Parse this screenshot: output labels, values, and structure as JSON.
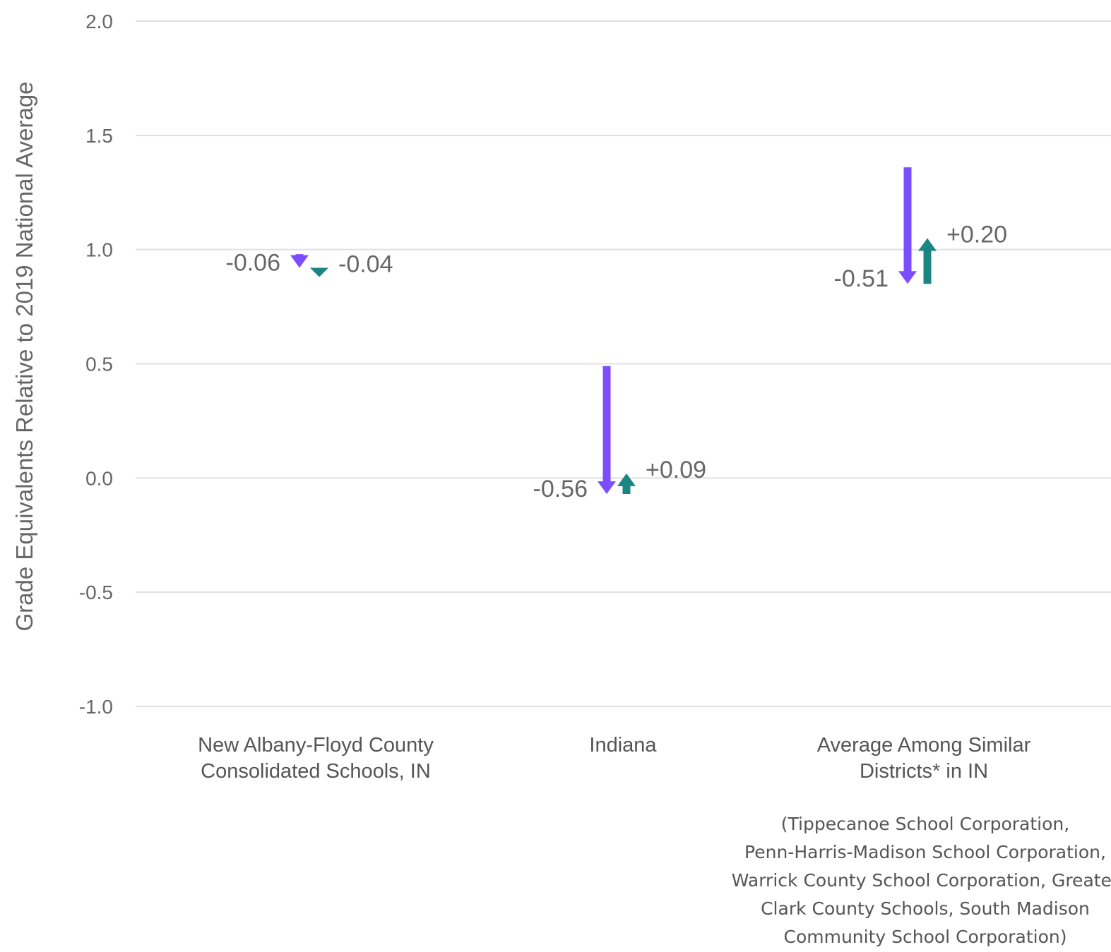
{
  "chart_data": {
    "type": "arrow",
    "ylabel": "Grade Equivalents Relative to 2019 National Average",
    "ylim": [
      -1.0,
      2.0
    ],
    "yticks": [
      "2.0",
      "1.5",
      "1.0",
      "0.5",
      "0.0",
      "-0.5",
      "-1.0"
    ],
    "grid": true,
    "colors": {
      "decline": "#7c4dff",
      "recovery": "#1b8583",
      "grid": "#e0e0e0",
      "text": "#666666"
    },
    "categories": [
      {
        "label_lines": [
          "New Albany-Floyd County",
          "Consolidated Schools, IN"
        ]
      },
      {
        "label_lines": [
          "Indiana"
        ]
      },
      {
        "label_lines": [
          "Average Among Similar",
          "Districts* in IN"
        ]
      }
    ],
    "series": [
      {
        "start": [
          0.98,
          0.49,
          1.36
        ],
        "end": [
          0.92,
          -0.07,
          0.85
        ],
        "labels": [
          "-0.06",
          "-0.56",
          "-0.51"
        ]
      },
      {
        "start": [
          0.92,
          -0.07,
          0.85
        ],
        "end": [
          0.88,
          0.02,
          1.05
        ],
        "labels": [
          "-0.04",
          "+0.09",
          "+0.20"
        ]
      }
    ]
  },
  "footnote": {
    "lines": [
      "(Tippecanoe School Corporation,",
      "Penn-Harris-Madison School Corporation,",
      "Warrick County School Corporation, Greater",
      "Clark County Schools, South Madison",
      "Community School Corporation)"
    ]
  }
}
